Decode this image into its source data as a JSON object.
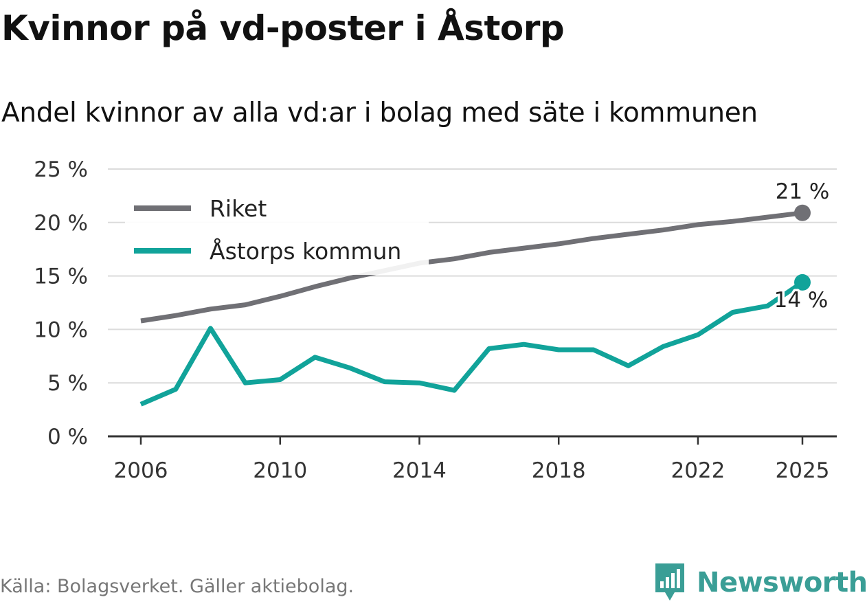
{
  "title": "Kvinnor på vd-poster i Åstorp",
  "subtitle": "Andel kvinnor av alla vd:ar i bolag med säte i kommunen",
  "source": "Källa: Bolagsverket. Gäller aktiebolag.",
  "brand": {
    "name": "Newsworthy",
    "icon": "newsworthy-logo-icon",
    "color": "#3a9e96"
  },
  "chart_data": {
    "type": "line",
    "title": "Kvinnor på vd-poster i Åstorp",
    "subtitle": "Andel kvinnor av alla vd:ar i bolag med säte i kommunen",
    "xlabel": "",
    "ylabel": "",
    "xlim": [
      2006,
      2025
    ],
    "ylim": [
      0,
      25
    ],
    "x_ticks": [
      2006,
      2010,
      2014,
      2018,
      2022,
      2025
    ],
    "x_tick_labels": [
      "2006",
      "2010",
      "2014",
      "2018",
      "2022",
      "2025"
    ],
    "y_ticks": [
      0,
      5,
      10,
      15,
      20,
      25
    ],
    "y_tick_labels": [
      "0 %",
      "5 %",
      "10 %",
      "15 %",
      "20 %",
      "25 %"
    ],
    "grid": true,
    "legend_position": "top-left",
    "x": [
      2006,
      2007,
      2008,
      2009,
      2010,
      2011,
      2012,
      2013,
      2014,
      2015,
      2016,
      2017,
      2018,
      2019,
      2020,
      2021,
      2022,
      2023,
      2024,
      2025
    ],
    "series": [
      {
        "name": "Riket",
        "color": "#707075",
        "values": [
          10.8,
          11.3,
          11.9,
          12.3,
          13.1,
          14.0,
          14.8,
          15.5,
          16.2,
          16.6,
          17.2,
          17.6,
          18.0,
          18.5,
          18.9,
          19.3,
          19.8,
          20.1,
          20.5,
          20.9
        ],
        "end_label": "21 %"
      },
      {
        "name": "Åstorps kommun",
        "color": "#11a39a",
        "values": [
          3.0,
          4.4,
          10.1,
          5.0,
          5.3,
          7.4,
          6.4,
          5.1,
          5.0,
          4.3,
          8.2,
          8.6,
          8.1,
          8.1,
          6.6,
          8.4,
          9.5,
          11.6,
          12.2,
          14.4
        ],
        "end_label": "14 %"
      }
    ]
  }
}
